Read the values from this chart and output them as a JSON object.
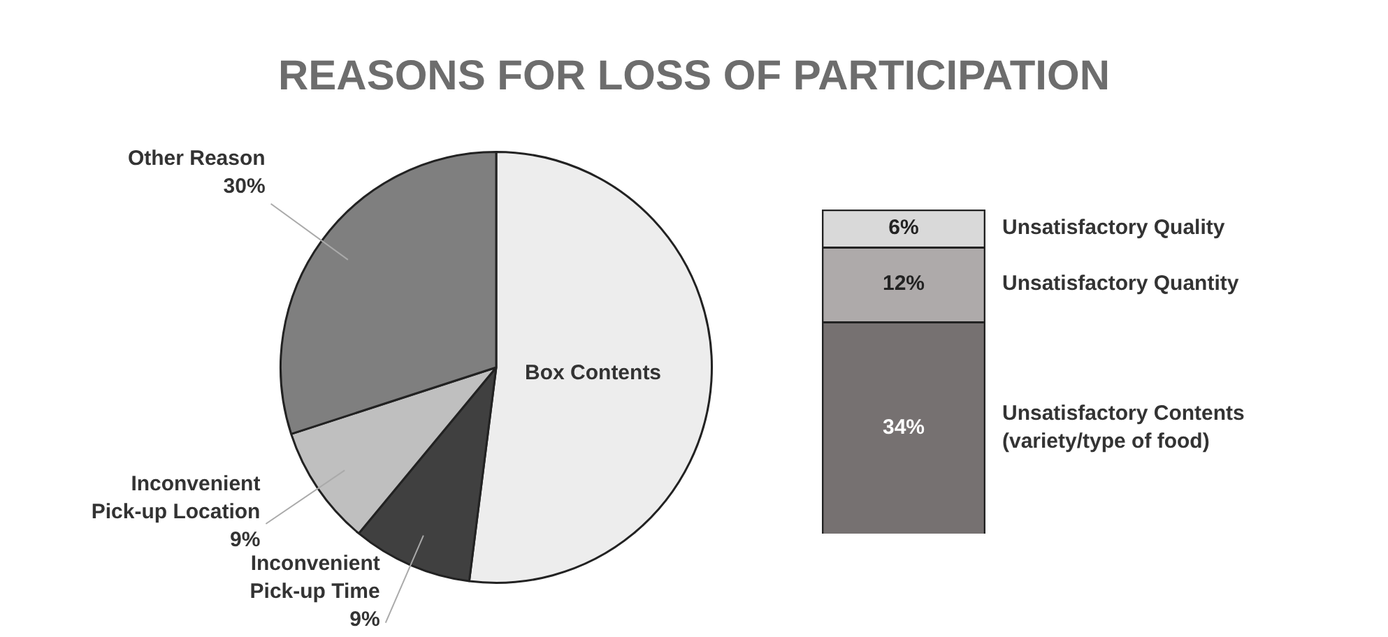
{
  "chart_data": [
    {
      "type": "pie",
      "title": "REASONS FOR LOSS OF PARTICIPATION",
      "categories": [
        "Box Contents",
        "Inconvenient Pick-up Time",
        "Inconvenient Pick-up Location",
        "Other Reason"
      ],
      "values": [
        52,
        9,
        9,
        30
      ],
      "colors": [
        "#ededed",
        "#404040",
        "#bfbfbf",
        "#7f7f7f"
      ],
      "value_labels": [
        null,
        "9%",
        "9%",
        "30%"
      ],
      "legend": false
    },
    {
      "type": "bar",
      "stacked": true,
      "categories": [
        null
      ],
      "tick_labels": false,
      "legend": false,
      "series": [
        {
          "name": "Unsatisfactory Contents (variety/type of food)",
          "color": "#767171",
          "values": [
            34
          ],
          "value_labels": [
            "34%"
          ]
        },
        {
          "name": "Unsatisfactory Quantity",
          "color": "#aeaaaa",
          "values": [
            12
          ],
          "value_labels": [
            "12%"
          ]
        },
        {
          "name": "Unsatisfactory Quality",
          "color": "#d9d9d9",
          "values": [
            6
          ],
          "value_labels": [
            "6%"
          ]
        }
      ]
    }
  ]
}
